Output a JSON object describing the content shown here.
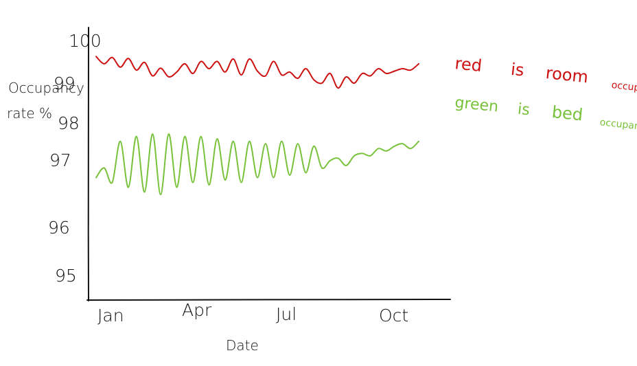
{
  "chart_data": {
    "type": "line",
    "title": "",
    "xlabel": "Date",
    "ylabel_lines": [
      "Occupancy",
      "rate %"
    ],
    "x_ticks": [
      "Jan",
      "Apr",
      "Jul",
      "Oct"
    ],
    "y_ticks": [
      100,
      99,
      98,
      97,
      96,
      95
    ],
    "y_tick_labels": [
      "100",
      "99",
      "98",
      "97",
      "96",
      "95"
    ],
    "ylim": [
      94.6,
      100.2
    ],
    "grid": false,
    "legend_position": "top-right",
    "legend": [
      {
        "color_word": "red",
        "is": "is",
        "name_big": "room",
        "name_small": "occupancy rate"
      },
      {
        "color_word": "green",
        "is": "is",
        "name_big": "bed",
        "name_small": "occupancy rate"
      }
    ],
    "series": [
      {
        "name": "room occupancy rate",
        "color": "#cc1111",
        "x_month": [
          0.0,
          0.25,
          0.5,
          0.75,
          1.0,
          1.25,
          1.5,
          1.75,
          2.0,
          2.25,
          2.5,
          2.75,
          3.0,
          3.25,
          3.5,
          3.75,
          4.0,
          4.25,
          4.5,
          4.75,
          5.0,
          5.25,
          5.5,
          5.75,
          6.0,
          6.25,
          6.5,
          6.75,
          7.0,
          7.25,
          7.5,
          7.75,
          8.0,
          8.25,
          8.5,
          8.75,
          9.0,
          9.25,
          9.5,
          9.75,
          10.0
        ],
        "values": [
          99.6,
          99.45,
          99.58,
          99.38,
          99.56,
          99.32,
          99.48,
          99.2,
          99.36,
          99.18,
          99.28,
          99.45,
          99.25,
          99.5,
          99.35,
          99.5,
          99.28,
          99.55,
          99.22,
          99.55,
          99.3,
          99.2,
          99.5,
          99.22,
          99.28,
          99.15,
          99.35,
          99.12,
          99.05,
          99.25,
          98.95,
          99.18,
          99.05,
          99.25,
          99.2,
          99.35,
          99.25,
          99.3,
          99.35,
          99.32,
          99.45
        ]
      },
      {
        "name": "bed occupancy rate",
        "color": "#77c23a",
        "x_month": [
          0.0,
          0.25,
          0.5,
          0.75,
          1.0,
          1.25,
          1.5,
          1.75,
          2.0,
          2.25,
          2.5,
          2.75,
          3.0,
          3.25,
          3.5,
          3.75,
          4.0,
          4.25,
          4.5,
          4.75,
          5.0,
          5.25,
          5.5,
          5.75,
          6.0,
          6.25,
          6.5,
          6.75,
          7.0,
          7.25,
          7.5,
          7.75,
          8.0,
          8.25,
          8.5,
          8.75,
          9.0,
          9.25,
          9.5,
          9.75,
          10.0
        ],
        "values": [
          97.1,
          97.3,
          97.0,
          97.85,
          96.9,
          97.95,
          96.8,
          98.0,
          96.75,
          98.0,
          96.9,
          97.95,
          97.0,
          97.95,
          96.95,
          97.9,
          97.05,
          97.85,
          97.0,
          97.85,
          97.1,
          97.8,
          97.1,
          97.85,
          97.15,
          97.8,
          97.2,
          97.75,
          97.3,
          97.45,
          97.5,
          97.35,
          97.55,
          97.6,
          97.55,
          97.7,
          97.65,
          97.75,
          97.8,
          97.7,
          97.85
        ]
      }
    ]
  }
}
